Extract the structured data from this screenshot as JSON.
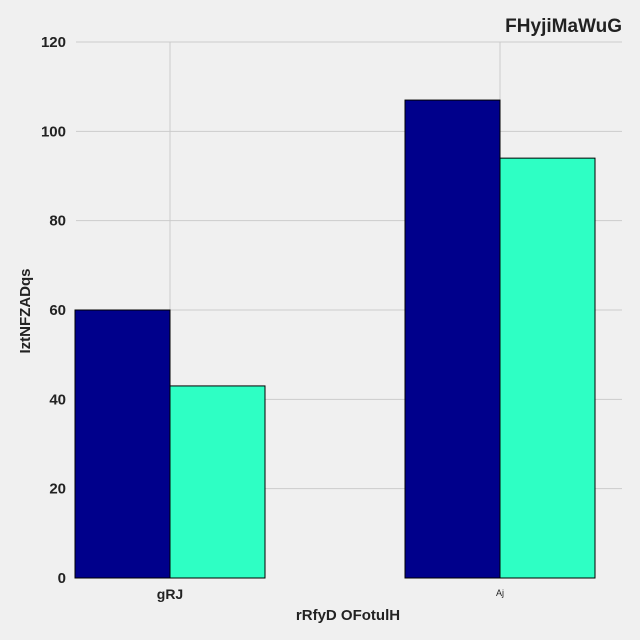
{
  "chart_data": {
    "type": "bar",
    "title": "FHyjiMaWuG",
    "xlabel": "rRfyD OFotulH",
    "ylabel": "IztNFZADqs",
    "categories": [
      "gRJ",
      "Aj"
    ],
    "series": [
      {
        "values": [
          60,
          107
        ],
        "color": "#00008b"
      },
      {
        "values": [
          43,
          94
        ],
        "color": "#2effc4"
      }
    ],
    "ylim": [
      0,
      120
    ],
    "yticks": [
      0,
      20,
      40,
      60,
      80,
      100,
      120
    ],
    "grid": true,
    "legend": "none"
  }
}
